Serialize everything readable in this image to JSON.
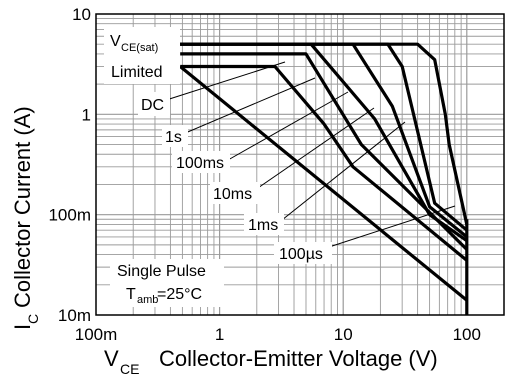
{
  "chart_data": {
    "type": "line",
    "title": "",
    "xscale": "log",
    "yscale": "log",
    "xlim": [
      0.1,
      200
    ],
    "ylim": [
      0.01,
      10
    ],
    "grid": true,
    "xlabel": {
      "main": "V",
      "sub": "CE",
      "rest": "Collector-Emitter Voltage (V)"
    },
    "ylabel": {
      "main": "I",
      "sub": "C",
      "rest": "Collector Current (A)"
    },
    "xticks": [
      {
        "value": 0.1,
        "label": "100m"
      },
      {
        "value": 1,
        "label": "1"
      },
      {
        "value": 10,
        "label": "10"
      },
      {
        "value": 100,
        "label": "100"
      }
    ],
    "yticks": [
      {
        "value": 0.01,
        "label": "10m"
      },
      {
        "value": 0.1,
        "label": "100m"
      },
      {
        "value": 1,
        "label": "1"
      },
      {
        "value": 10,
        "label": "10"
      }
    ],
    "series": [
      {
        "id": "limit",
        "points": [
          [
            0.48,
            5
          ],
          [
            40,
            5
          ],
          [
            55,
            3.5
          ],
          [
            67,
            1.0
          ],
          [
            72,
            0.5
          ],
          [
            100,
            0.08
          ]
        ]
      },
      {
        "id": "us100",
        "points": [
          [
            0.48,
            5
          ],
          [
            23,
            5
          ],
          [
            30,
            3.0
          ],
          [
            55,
            0.13
          ],
          [
            100,
            0.07
          ]
        ]
      },
      {
        "id": "ms1",
        "points": [
          [
            0.48,
            5
          ],
          [
            12,
            5
          ],
          [
            25,
            1.2
          ],
          [
            50,
            0.12
          ],
          [
            100,
            0.06
          ]
        ]
      },
      {
        "id": "ms10",
        "points": [
          [
            0.48,
            5
          ],
          [
            5.5,
            5
          ],
          [
            18,
            0.9
          ],
          [
            50,
            0.1
          ],
          [
            100,
            0.055
          ]
        ]
      },
      {
        "id": "ms100",
        "points": [
          [
            0.48,
            4
          ],
          [
            5,
            4
          ],
          [
            14,
            0.5
          ],
          [
            100,
            0.045
          ]
        ]
      },
      {
        "id": "s1",
        "points": [
          [
            0.48,
            3
          ],
          [
            2.8,
            3
          ],
          [
            7,
            0.8
          ],
          [
            12,
            0.3
          ],
          [
            100,
            0.035
          ]
        ]
      },
      {
        "id": "dc",
        "points": [
          [
            0.48,
            3
          ],
          [
            100,
            0.014
          ]
        ]
      },
      {
        "id": "vline",
        "points": [
          [
            100,
            0.09
          ],
          [
            100,
            0.01
          ]
        ]
      }
    ],
    "labels": {
      "vcesat_main": "V",
      "vcesat_sub": "CE(sat)",
      "limited": "Limited",
      "dc": "DC",
      "s1": "1s",
      "ms100": "100ms",
      "ms10": "10ms",
      "ms1": "1ms",
      "us100": "100µs",
      "pulse1": "Single Pulse",
      "pulse2_main": "T",
      "pulse2_sub": "amb",
      "pulse2_rest": "=25°C"
    }
  }
}
